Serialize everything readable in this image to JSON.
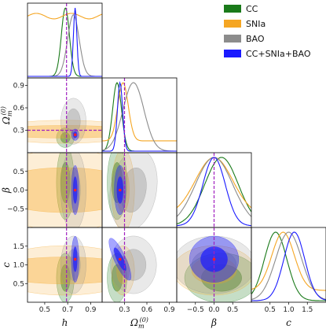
{
  "chart_data": {
    "type": "triangle-corner",
    "parameters": [
      {
        "key": "h",
        "label": "h",
        "ticks": [
          0.5,
          0.7,
          0.9
        ],
        "tick_labels": [
          "0.5",
          "0.7",
          "0.9"
        ],
        "range": [
          0.35,
          1.0
        ],
        "truth": 0.69
      },
      {
        "key": "om",
        "label": "Ω(0)m",
        "ticks": [
          0.3,
          0.6,
          0.9
        ],
        "tick_labels": [
          "0.3",
          "0.6",
          "0.9"
        ],
        "range": [
          0.0,
          1.0
        ],
        "truth": 0.3
      },
      {
        "key": "beta",
        "label": "β",
        "ticks": [
          -0.5,
          0.0,
          0.5
        ],
        "tick_labels": [
          "−0.5",
          "0.0",
          "0.5"
        ],
        "range": [
          -1.0,
          1.0
        ],
        "truth": 0.0
      },
      {
        "key": "c",
        "label": "c",
        "ticks": [
          0.5,
          1.0,
          1.5
        ],
        "tick_labels": [
          "0.5",
          "1.0",
          "1.5"
        ],
        "range": [
          0.0,
          2.0
        ],
        "truth": null
      }
    ],
    "series": [
      {
        "name": "CC",
        "color": "#1a7a1a",
        "marginals": {
          "h": {
            "mean": 0.68,
            "sd": 0.035
          },
          "om": {
            "mean": 0.2,
            "sd": 0.06
          },
          "beta": {
            "mean": 0.2,
            "sd": 0.45
          },
          "c": {
            "mean": 0.65,
            "sd": 0.3
          }
        }
      },
      {
        "name": "SNIa",
        "color": "#f5a623",
        "marginals": {
          "h": {
            "flat": true
          },
          "om": {
            "mean": 0.28,
            "sd": 0.07
          },
          "beta": {
            "mean": 0.0,
            "sd": 0.5
          },
          "c": {
            "mean": 0.85,
            "sd": 0.3
          }
        }
      },
      {
        "name": "BAO",
        "color": "#8c8c8c",
        "marginals": {
          "h": {
            "mean": 0.75,
            "sd": 0.05
          },
          "om": {
            "mean": 0.42,
            "sd": 0.14
          },
          "beta": {
            "mean": 0.0,
            "sd": 0.5
          },
          "c": {
            "mean": 1.0,
            "sd": 0.35
          }
        }
      },
      {
        "name": "CC+SNIa+BAO",
        "color": "#1a1aff",
        "marginals": {
          "h": {
            "mean": 0.765,
            "sd": 0.015
          },
          "om": {
            "mean": 0.24,
            "sd": 0.035
          },
          "beta": {
            "mean": 0.0,
            "sd": 0.3
          },
          "c": {
            "mean": 1.15,
            "sd": 0.28
          }
        }
      }
    ],
    "best_fit": {
      "h": 0.765,
      "om": 0.24,
      "beta": 0.0,
      "c": 1.15
    },
    "truth_line_color": "#a020c0",
    "best_fit_color": "#ff2020",
    "legend_position": "top-right"
  }
}
